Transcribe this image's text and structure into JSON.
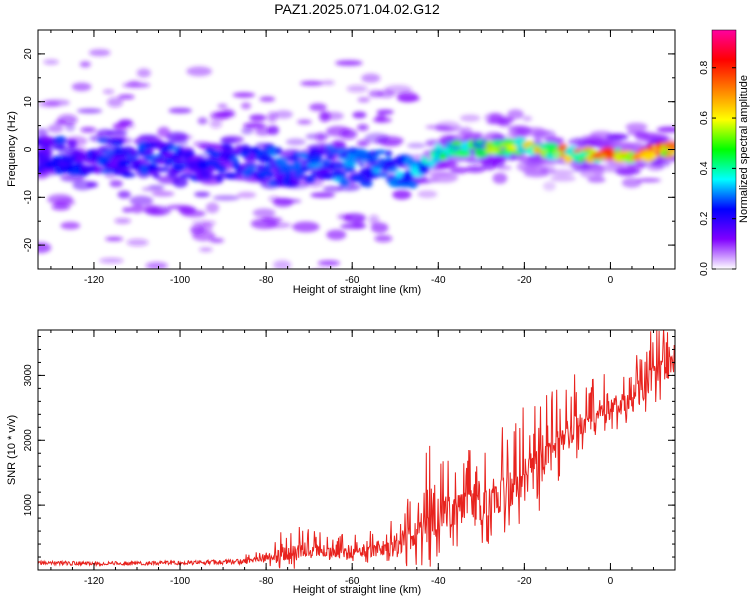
{
  "figure": {
    "title": "PAZ1.2025.071.04.02.G12"
  },
  "colors": {
    "snr_line": "#e8231e",
    "axis": "#000000",
    "background": "#ffffff"
  },
  "chart_data": [
    {
      "type": "heatmap",
      "xlabel": "Height of straight line (km)",
      "ylabel": "Frequency (Hz)",
      "xlim": [
        -133,
        15
      ],
      "ylim": [
        -25,
        25
      ],
      "xticks": [
        -120,
        -100,
        -80,
        -60,
        -40,
        -20,
        0
      ],
      "yticks": [
        -20,
        -10,
        0,
        10,
        20
      ],
      "colorbar": {
        "label": "Normalized spectral amplitude",
        "range": [
          0,
          0.95
        ],
        "ticks": [
          0.0,
          0.2,
          0.4,
          0.6,
          0.8
        ],
        "colormap": [
          "#ffffff",
          "#8000ff",
          "#0000ff",
          "#00ffff",
          "#00ff00",
          "#ffff00",
          "#ff8000",
          "#ff0000",
          "#ff00a0"
        ]
      },
      "ridge": [
        {
          "x": -133,
          "f": -1.0,
          "a": 0.22
        },
        {
          "x": -125,
          "f": -1.5,
          "a": 0.24
        },
        {
          "x": -115,
          "f": -1.5,
          "a": 0.24
        },
        {
          "x": -105,
          "f": -2.5,
          "a": 0.25
        },
        {
          "x": -95,
          "f": -2.5,
          "a": 0.24
        },
        {
          "x": -85,
          "f": -2.5,
          "a": 0.25
        },
        {
          "x": -75,
          "f": -4.0,
          "a": 0.26
        },
        {
          "x": -65,
          "f": -3.5,
          "a": 0.28
        },
        {
          "x": -55,
          "f": -4.0,
          "a": 0.3
        },
        {
          "x": -45,
          "f": -4.0,
          "a": 0.33
        },
        {
          "x": -38,
          "f": 0.0,
          "a": 0.45
        },
        {
          "x": -30,
          "f": 0.5,
          "a": 0.48
        },
        {
          "x": -20,
          "f": 0.5,
          "a": 0.55
        },
        {
          "x": -10,
          "f": -1.0,
          "a": 0.65
        },
        {
          "x": 0,
          "f": -1.0,
          "a": 0.7
        },
        {
          "x": 10,
          "f": -0.5,
          "a": 0.8
        },
        {
          "x": 15,
          "f": 0.0,
          "a": 0.75
        }
      ]
    },
    {
      "type": "line",
      "xlabel": "Height of straight line (km)",
      "ylabel": "SNR (10 * v/v)",
      "xlim": [
        -133,
        15
      ],
      "ylim": [
        0,
        3700
      ],
      "xticks": [
        -120,
        -100,
        -80,
        -60,
        -40,
        -20,
        0
      ],
      "yticks": [
        1000,
        2000,
        3000
      ],
      "series": [
        {
          "x": [
            -133,
            -120,
            -100,
            -85,
            -80,
            -75,
            -70,
            -65,
            -60,
            -55,
            -50,
            -45,
            -42,
            -40,
            -35,
            -30,
            -25,
            -20,
            -15,
            -10,
            -5,
            0,
            5,
            10,
            15
          ],
          "y": [
            110,
            100,
            110,
            130,
            200,
            280,
            320,
            280,
            280,
            300,
            350,
            600,
            800,
            900,
            1000,
            1000,
            1200,
            1500,
            1700,
            2200,
            2300,
            2500,
            2600,
            3000,
            3200
          ],
          "amp": [
            60,
            60,
            60,
            80,
            150,
            350,
            300,
            200,
            250,
            250,
            400,
            700,
            1000,
            800,
            800,
            700,
            900,
            1000,
            900,
            700,
            500,
            500,
            500,
            600,
            500
          ]
        }
      ]
    }
  ]
}
